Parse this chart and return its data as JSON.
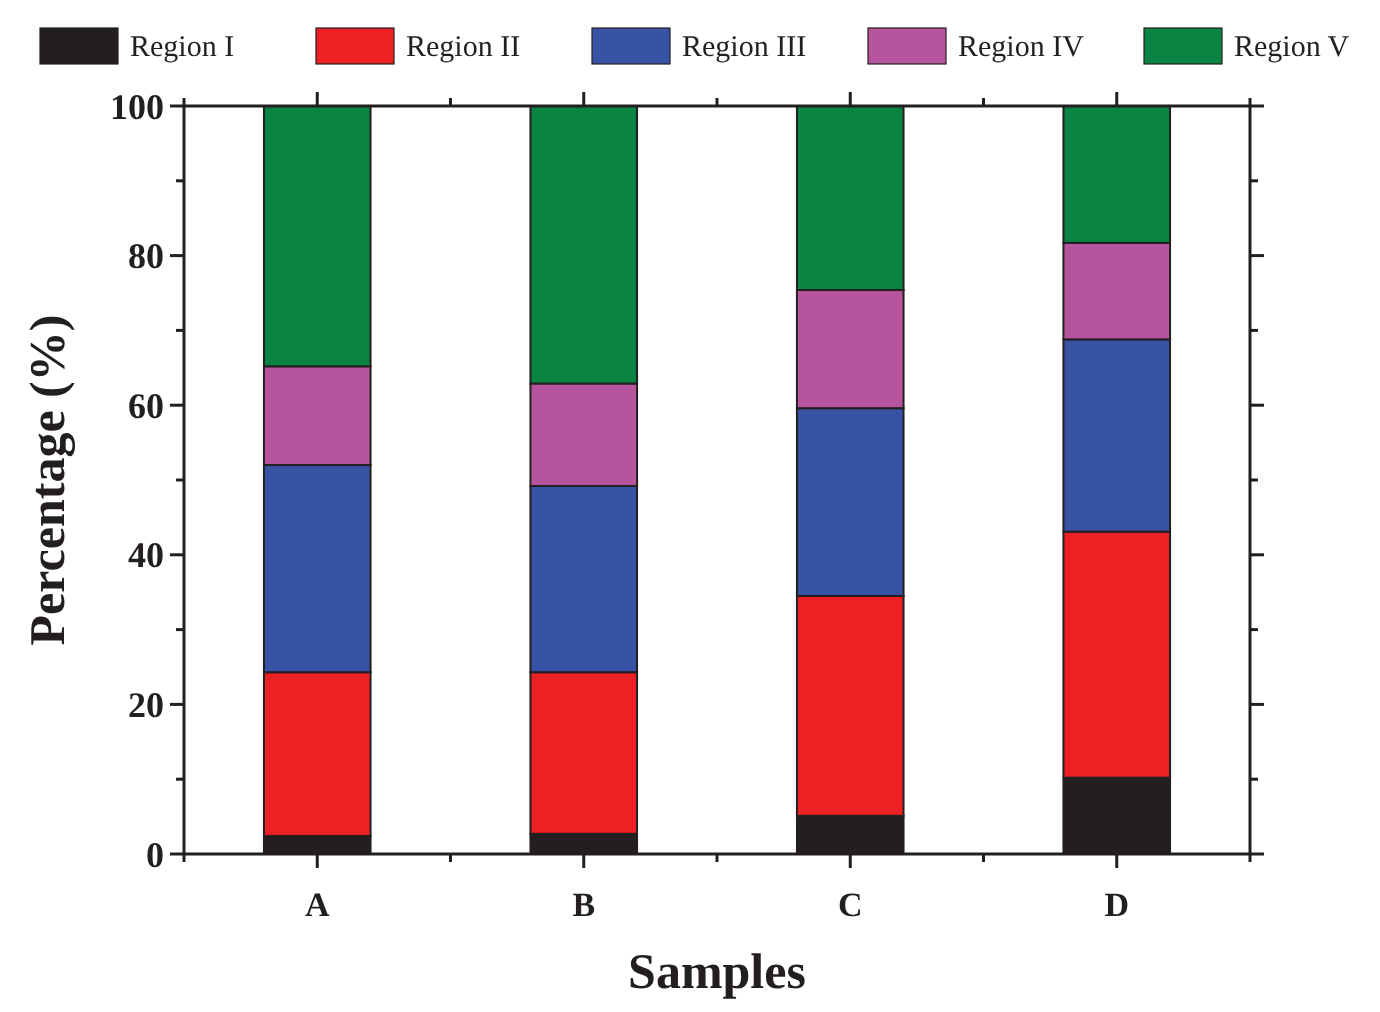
{
  "chart_data": {
    "type": "bar",
    "stacked": true,
    "xlabel": "Samples",
    "ylabel": "Percentage (%)",
    "categories": [
      "A",
      "B",
      "C",
      "D"
    ],
    "ylim": [
      0,
      100
    ],
    "yticks": [
      0,
      {
        "value": 10,
        "label": null
      },
      20,
      {
        "value": 30,
        "label": null
      },
      40,
      {
        "value": 50,
        "label": null
      },
      60,
      {
        "value": 70,
        "label": null
      },
      80,
      {
        "value": 90,
        "label": null
      },
      100
    ],
    "legend": "top",
    "grid": false,
    "series": [
      {
        "name": "Region I",
        "color": "#231f20",
        "values": [
          2.4,
          2.7,
          5.1,
          10.2
        ]
      },
      {
        "name": "Region II",
        "color": "#ed2024",
        "values": [
          21.9,
          21.6,
          29.4,
          32.9
        ]
      },
      {
        "name": "Region III",
        "color": "#3853a4",
        "values": [
          27.7,
          24.9,
          25.1,
          25.7
        ]
      },
      {
        "name": "Region IV",
        "color": "#b7549e",
        "values": [
          13.2,
          13.7,
          15.8,
          12.9
        ]
      },
      {
        "name": "Region V",
        "color": "#0a8443",
        "values": [
          34.8,
          37.1,
          24.6,
          18.3
        ]
      }
    ]
  }
}
